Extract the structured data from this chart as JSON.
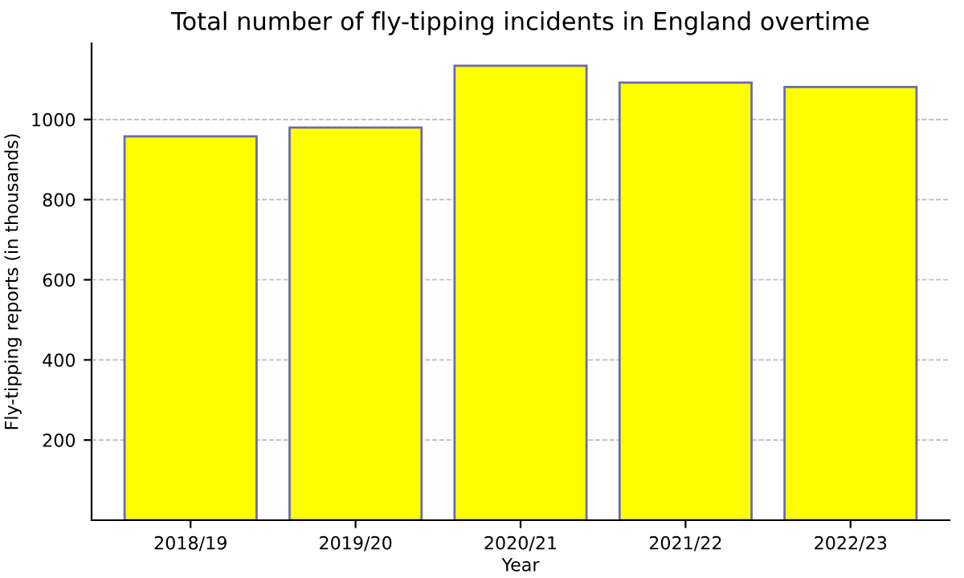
{
  "chart_data": {
    "type": "bar",
    "title": "Total number of fly-tipping incidents in England overtime",
    "xlabel": "Year",
    "ylabel": "Fly-tipping reports (in thousands)",
    "categories": [
      "2018/19",
      "2019/20",
      "2020/21",
      "2021/22",
      "2022/23"
    ],
    "values": [
      958,
      980,
      1134,
      1092,
      1081
    ],
    "color": "#ffff00",
    "ylim": [
      0,
      1190
    ],
    "yticks": [
      200,
      400,
      600,
      800,
      1000
    ],
    "grid": "y"
  }
}
